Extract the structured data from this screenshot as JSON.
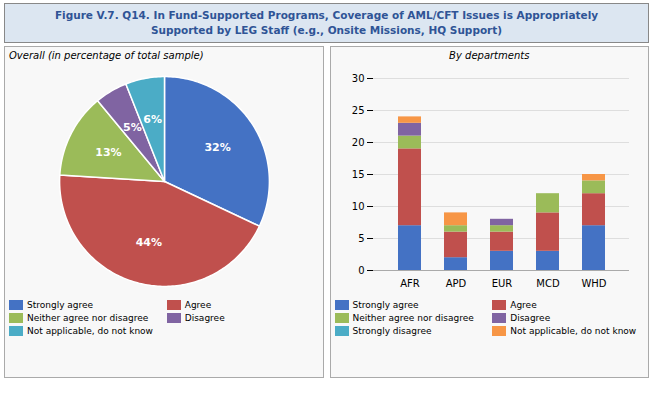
{
  "title": [
    "Figure V.7. Q14. In Fund-Supported Programs, Coverage of AML/CFT Issues is Appropriately",
    "Supported by LEG Staff (e.g., Onsite Missions, HQ Support)"
  ],
  "chart_data": [
    {
      "type": "pie",
      "subtitle": "Overall (in percentage of total sample)",
      "categories": [
        "Strongly agree",
        "Agree",
        "Neither agree nor disagree",
        "Disagree",
        "Not applicable, do not know"
      ],
      "values": [
        32,
        44,
        13,
        5,
        6
      ],
      "value_labels": [
        "32%",
        "44%",
        "13%",
        "5%",
        "6%"
      ],
      "colors": [
        "#4472C4",
        "#C0504D",
        "#9BBB59",
        "#8064A2",
        "#4BACC6"
      ],
      "data_labels": true,
      "legend": "bottom"
    },
    {
      "type": "bar",
      "subtitle": "By departments",
      "stacked": true,
      "categories": [
        "AFR",
        "APD",
        "EUR",
        "MCD",
        "WHD"
      ],
      "series": [
        {
          "name": "Strongly agree",
          "color": "#4472C4",
          "values": [
            7,
            2,
            3,
            3,
            7
          ]
        },
        {
          "name": "Agree",
          "color": "#C0504D",
          "values": [
            12,
            4,
            3,
            6,
            5
          ]
        },
        {
          "name": "Neither agree nor disagree",
          "color": "#9BBB59",
          "values": [
            2,
            1,
            1,
            3,
            2
          ]
        },
        {
          "name": "Disagree",
          "color": "#8064A2",
          "values": [
            2,
            0,
            1,
            0,
            0
          ]
        },
        {
          "name": "Strongly disagree",
          "color": "#4BACC6",
          "values": [
            0,
            0,
            0,
            0,
            0
          ]
        },
        {
          "name": "Not applicable, do not know",
          "color": "#F79646",
          "values": [
            1,
            2,
            0,
            0,
            1
          ]
        }
      ],
      "ylim": [
        0,
        30
      ],
      "yticks": [
        0,
        5,
        10,
        15,
        20,
        25,
        30
      ],
      "grid": true,
      "legend": "bottom"
    }
  ]
}
